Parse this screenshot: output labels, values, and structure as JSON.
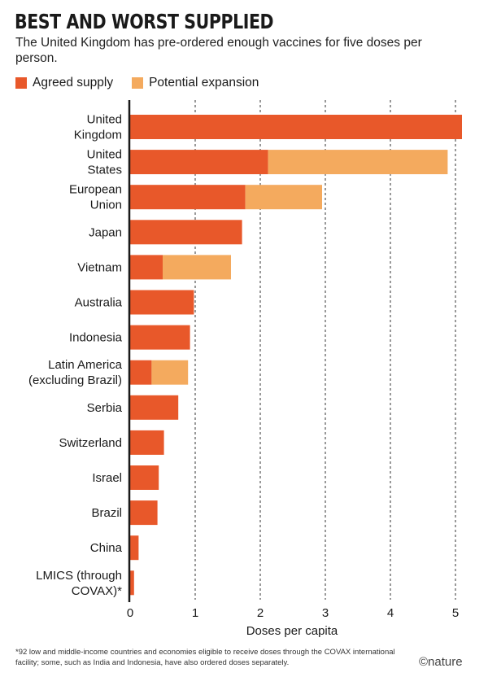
{
  "header": {
    "title": "BEST AND WORST SUPPLIED",
    "subtitle": "The United Kingdom has pre-ordered enough vaccines for five doses per person."
  },
  "legend": [
    {
      "label": "Agreed supply",
      "color": "#e8582a"
    },
    {
      "label": "Potential expansion",
      "color": "#f4aa5e"
    }
  ],
  "chart_data": {
    "type": "bar",
    "orientation": "horizontal",
    "stacked": true,
    "categories": [
      [
        "United",
        "Kingdom"
      ],
      [
        "United",
        "States"
      ],
      [
        "European",
        "Union"
      ],
      [
        "Japan"
      ],
      [
        "Vietnam"
      ],
      [
        "Australia"
      ],
      [
        "Indonesia"
      ],
      [
        "Latin America",
        "(excluding Brazil)"
      ],
      [
        "Serbia"
      ],
      [
        "Switzerland"
      ],
      [
        "Israel"
      ],
      [
        "Brazil"
      ],
      [
        "China"
      ],
      [
        "LMICS (through",
        "COVAX)*"
      ]
    ],
    "series": [
      {
        "name": "Agreed supply",
        "color": "#e8582a",
        "values": [
          5.1,
          2.12,
          1.77,
          1.72,
          0.5,
          0.98,
          0.92,
          0.33,
          0.74,
          0.52,
          0.44,
          0.42,
          0.13,
          0.06
        ]
      },
      {
        "name": "Potential expansion",
        "color": "#f4aa5e",
        "values": [
          0,
          2.76,
          1.18,
          0,
          1.05,
          0,
          0,
          0.56,
          0,
          0,
          0,
          0,
          0,
          0
        ]
      }
    ],
    "xlabel": "Doses per capita",
    "xlim": [
      0,
      5.15
    ],
    "xticks": [
      "0",
      "1",
      "2",
      "3",
      "4",
      "5"
    ],
    "grid": "dashed vertical",
    "legend_position": "top-left"
  },
  "footnote": "*92 low and middle-income countries and economies eligible to receive doses through the COVAX international facility; some, such as India and Indonesia, have also ordered doses separately.",
  "credit": "©nature"
}
